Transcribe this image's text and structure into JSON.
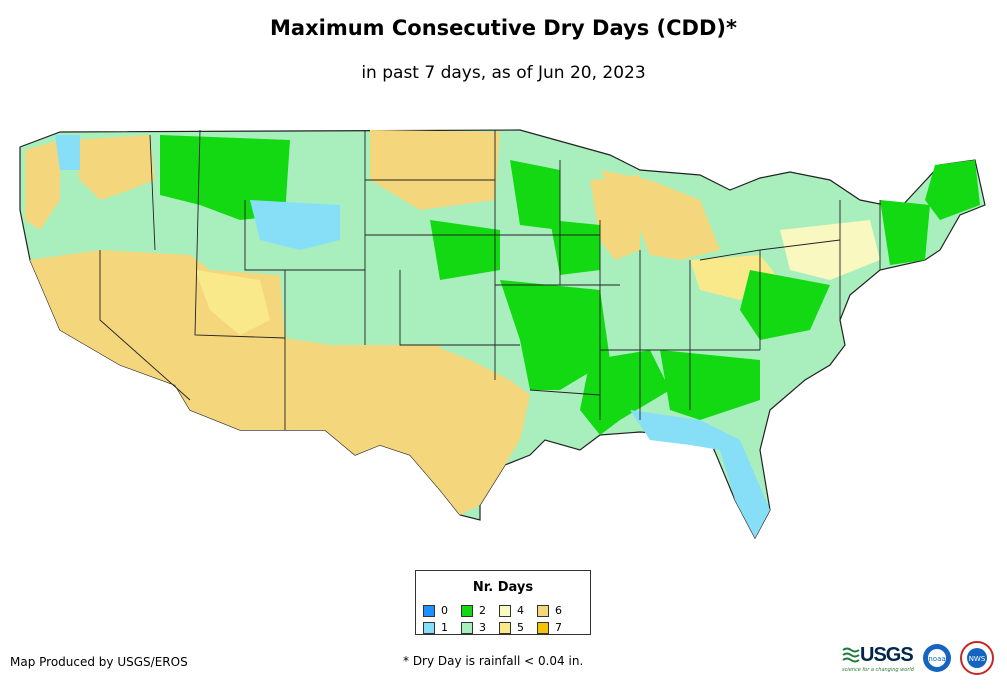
{
  "title": "Maximum Consecutive Dry Days (CDD)*",
  "subtitle": "in past 7 days, as of Jun 20, 2023",
  "legend": {
    "title": "Nr. Days",
    "items": [
      {
        "label": "0",
        "color": "#1e90ff"
      },
      {
        "label": "1",
        "color": "#87dff7"
      },
      {
        "label": "2",
        "color": "#12d912"
      },
      {
        "label": "3",
        "color": "#a8efbd"
      },
      {
        "label": "4",
        "color": "#f8f8c0"
      },
      {
        "label": "5",
        "color": "#fae98a"
      },
      {
        "label": "6",
        "color": "#f4d77c"
      },
      {
        "label": "7",
        "color": "#f2c300"
      }
    ]
  },
  "footer": {
    "producer": "Map Produced by USGS/EROS",
    "note": "* Dry Day is rainfall < 0.04 in."
  },
  "logos": {
    "usgs": "USGS",
    "usgs_tagline": "science for a changing world",
    "noaa": "noaa",
    "nws": "NWS"
  }
}
